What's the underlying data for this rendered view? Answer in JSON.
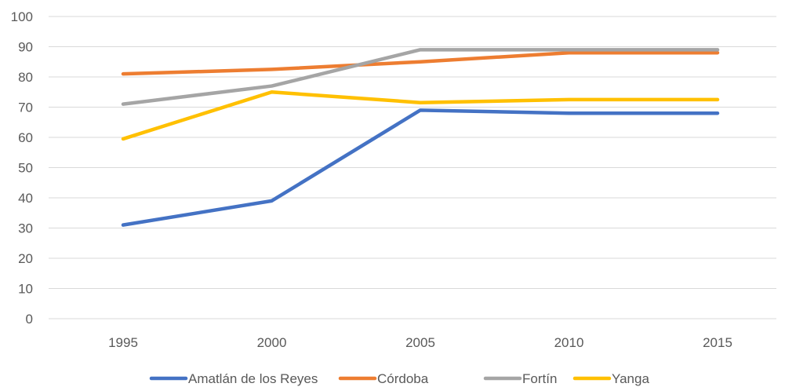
{
  "chart_data": {
    "type": "line",
    "title": "",
    "xlabel": "",
    "ylabel": "",
    "x": [
      "1995",
      "2000",
      "2005",
      "2010",
      "2015"
    ],
    "ylim": [
      0,
      100
    ],
    "yticks": [
      0,
      10,
      20,
      30,
      40,
      50,
      60,
      70,
      80,
      90,
      100
    ],
    "grid": true,
    "legend_position": "bottom",
    "series": [
      {
        "name": "Amatlán de los Reyes",
        "color": "#4472C4",
        "values": [
          31,
          39,
          69,
          68,
          68
        ]
      },
      {
        "name": "Córdoba",
        "color": "#ED7D31",
        "values": [
          81,
          82.5,
          85,
          88,
          88
        ]
      },
      {
        "name": "Fortín",
        "color": "#A5A5A5",
        "values": [
          71,
          77,
          89,
          89,
          89
        ]
      },
      {
        "name": "Yanga",
        "color": "#FFC000",
        "values": [
          59.5,
          75,
          71.5,
          72.5,
          72.5
        ]
      }
    ]
  }
}
